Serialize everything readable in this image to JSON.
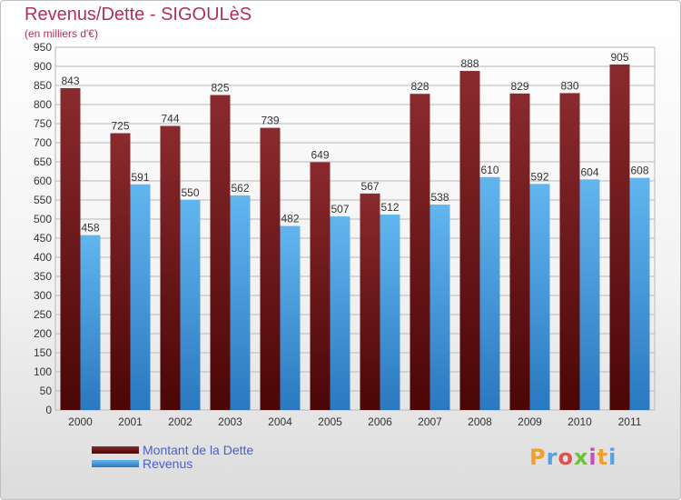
{
  "page": {
    "title": "Revenus/Dette - SIGOULèS",
    "subtitle": "(en milliers d'€)",
    "logo_text": "Proxiti",
    "logo_colors": [
      "#f0a030",
      "#5aa0e0",
      "#e05050",
      "#70c040",
      "#c050c0",
      "#f0a030",
      "#5aa0e0"
    ]
  },
  "legend": {
    "debt_label": "Montant de la Dette",
    "revenue_label": "Revenus"
  },
  "colors": {
    "debt": "#7a1a1e",
    "debt_dark": "#4a0606",
    "revenue": "#5aaee8",
    "revenue_dark": "#2a78c0",
    "grid": "#b8b8b8",
    "axis_text": "#333333"
  },
  "chart_data": {
    "type": "bar",
    "title": "Revenus/Dette - SIGOULèS",
    "subtitle": "(en milliers d'€)",
    "categories": [
      "2000",
      "2001",
      "2002",
      "2003",
      "2004",
      "2005",
      "2006",
      "2007",
      "2008",
      "2009",
      "2010",
      "2011"
    ],
    "series": [
      {
        "name": "Montant de la Dette",
        "values": [
          843,
          725,
          744,
          825,
          739,
          649,
          567,
          828,
          888,
          829,
          830,
          905
        ]
      },
      {
        "name": "Revenus",
        "values": [
          458,
          591,
          550,
          562,
          482,
          507,
          512,
          538,
          610,
          592,
          604,
          608
        ]
      }
    ],
    "ylim": [
      0,
      950
    ],
    "yticks": [
      0,
      50,
      100,
      150,
      200,
      250,
      300,
      350,
      400,
      450,
      500,
      550,
      600,
      650,
      700,
      750,
      800,
      850,
      900,
      950
    ],
    "grid": true,
    "legend_position": "bottom-left",
    "data_labels": true
  }
}
